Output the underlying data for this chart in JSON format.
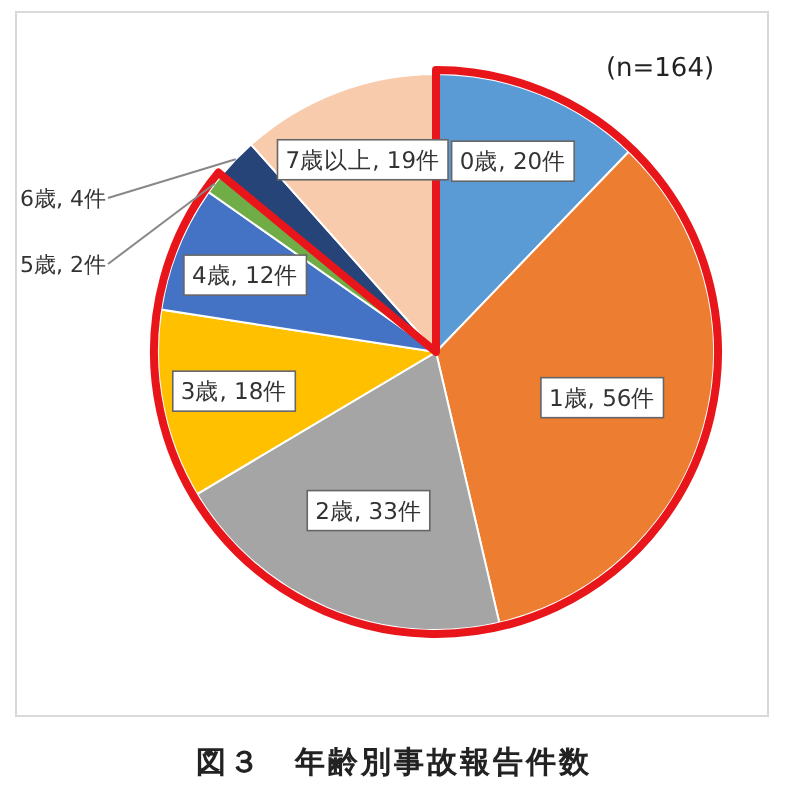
{
  "chart_data": {
    "type": "pie",
    "title": "図３　年齢別事故報告件数",
    "annotations": [
      "(n=164)"
    ],
    "categories": [
      "0歳",
      "1歳",
      "2歳",
      "3歳",
      "4歳",
      "5歳",
      "6歳",
      "7歳以上"
    ],
    "values": [
      20,
      56,
      33,
      18,
      12,
      2,
      4,
      19
    ],
    "value_labels": [
      "20件",
      "56件",
      "33件",
      "18件",
      "12件",
      "2件",
      "4件",
      "19件"
    ],
    "colors": [
      "#5b9bd5",
      "#ed7d31",
      "#a5a5a5",
      "#ffc000",
      "#4472c4",
      "#70ad47",
      "#264478",
      "#f8cbad"
    ]
  }
}
